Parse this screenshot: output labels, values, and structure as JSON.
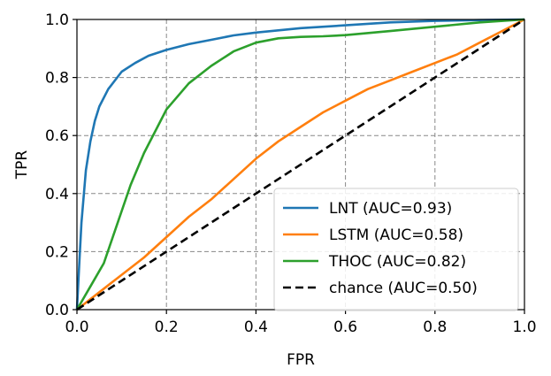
{
  "chart_data": {
    "type": "line",
    "title": "",
    "xlabel": "FPR",
    "ylabel": "TPR",
    "xlim": [
      0.0,
      1.0
    ],
    "ylim": [
      0.0,
      1.0
    ],
    "grid": true,
    "grid_style": "dashed",
    "legend_position": "lower-right",
    "x_ticks": [
      "0.0",
      "0.2",
      "0.4",
      "0.6",
      "0.8",
      "1.0"
    ],
    "y_ticks": [
      "0.0",
      "0.2",
      "0.4",
      "0.6",
      "0.8",
      "1.0"
    ],
    "series": [
      {
        "name": "LNT (AUC=0.93)",
        "color": "#1f77b4",
        "style": "solid",
        "points": [
          [
            0.0,
            0.0
          ],
          [
            0.005,
            0.15
          ],
          [
            0.01,
            0.3
          ],
          [
            0.02,
            0.48
          ],
          [
            0.03,
            0.58
          ],
          [
            0.04,
            0.65
          ],
          [
            0.05,
            0.7
          ],
          [
            0.07,
            0.76
          ],
          [
            0.1,
            0.82
          ],
          [
            0.13,
            0.85
          ],
          [
            0.16,
            0.875
          ],
          [
            0.2,
            0.895
          ],
          [
            0.25,
            0.915
          ],
          [
            0.3,
            0.93
          ],
          [
            0.35,
            0.945
          ],
          [
            0.4,
            0.955
          ],
          [
            0.5,
            0.97
          ],
          [
            0.6,
            0.98
          ],
          [
            0.7,
            0.99
          ],
          [
            0.8,
            0.995
          ],
          [
            0.9,
            0.998
          ],
          [
            1.0,
            1.0
          ]
        ]
      },
      {
        "name": "LSTM (AUC=0.58)",
        "color": "#ff7f0e",
        "style": "solid",
        "points": [
          [
            0.0,
            0.0
          ],
          [
            0.05,
            0.06
          ],
          [
            0.1,
            0.12
          ],
          [
            0.15,
            0.18
          ],
          [
            0.2,
            0.25
          ],
          [
            0.25,
            0.32
          ],
          [
            0.3,
            0.38
          ],
          [
            0.35,
            0.45
          ],
          [
            0.4,
            0.52
          ],
          [
            0.45,
            0.58
          ],
          [
            0.5,
            0.63
          ],
          [
            0.55,
            0.68
          ],
          [
            0.6,
            0.72
          ],
          [
            0.65,
            0.76
          ],
          [
            0.7,
            0.79
          ],
          [
            0.75,
            0.82
          ],
          [
            0.8,
            0.85
          ],
          [
            0.85,
            0.88
          ],
          [
            0.9,
            0.92
          ],
          [
            0.95,
            0.96
          ],
          [
            1.0,
            1.0
          ]
        ]
      },
      {
        "name": "THOC (AUC=0.82)",
        "color": "#2ca02c",
        "style": "solid",
        "points": [
          [
            0.0,
            0.0
          ],
          [
            0.03,
            0.08
          ],
          [
            0.06,
            0.16
          ],
          [
            0.08,
            0.25
          ],
          [
            0.1,
            0.34
          ],
          [
            0.12,
            0.43
          ],
          [
            0.15,
            0.54
          ],
          [
            0.18,
            0.63
          ],
          [
            0.2,
            0.69
          ],
          [
            0.25,
            0.78
          ],
          [
            0.3,
            0.84
          ],
          [
            0.35,
            0.89
          ],
          [
            0.4,
            0.92
          ],
          [
            0.45,
            0.935
          ],
          [
            0.5,
            0.94
          ],
          [
            0.55,
            0.942
          ],
          [
            0.6,
            0.946
          ],
          [
            0.7,
            0.96
          ],
          [
            0.8,
            0.975
          ],
          [
            0.9,
            0.99
          ],
          [
            1.0,
            1.0
          ]
        ]
      },
      {
        "name": "chance (AUC=0.50)",
        "color": "#000000",
        "style": "dashed",
        "points": [
          [
            0.0,
            0.0
          ],
          [
            1.0,
            1.0
          ]
        ]
      }
    ]
  }
}
